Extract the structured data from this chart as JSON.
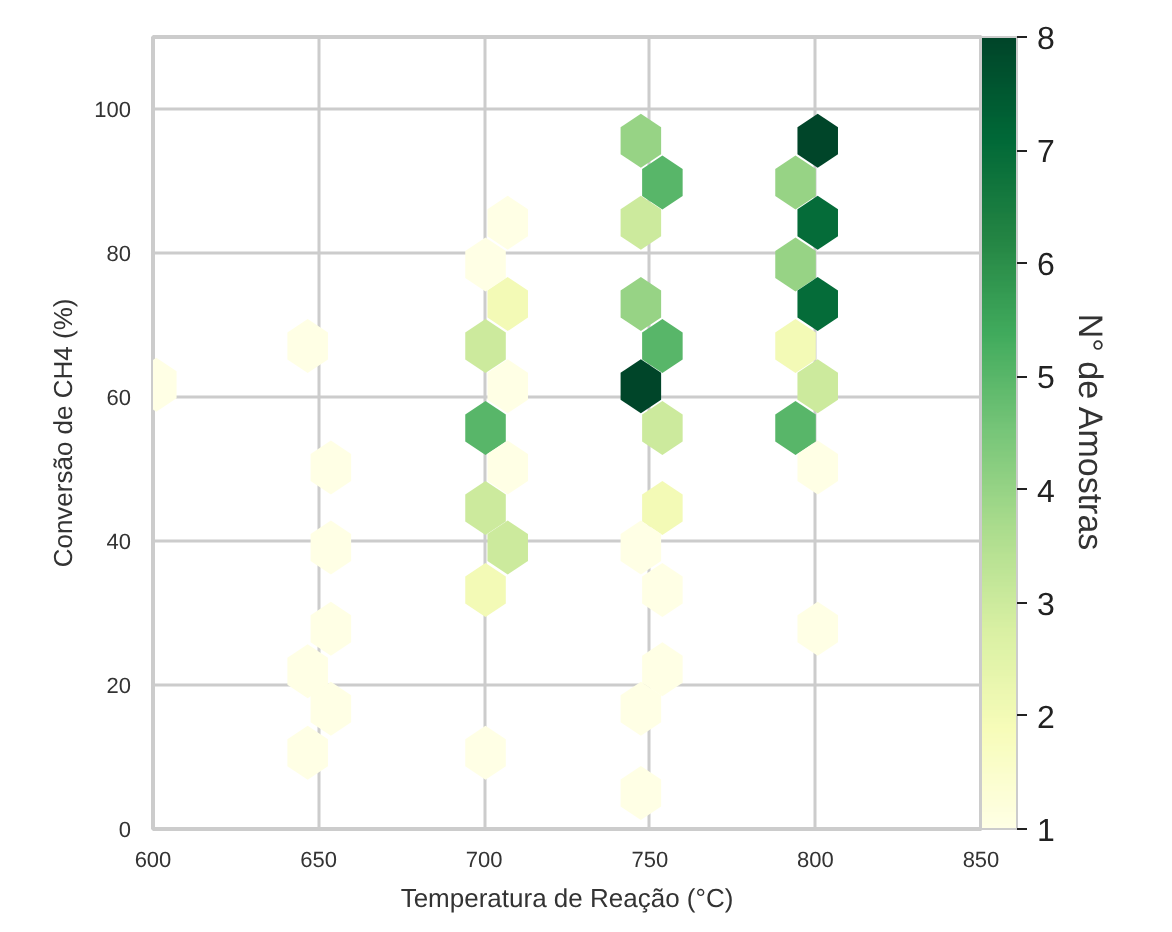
{
  "chart_data": {
    "type": "scatter",
    "xlabel": "Temperatura de Reação (°C)",
    "ylabel": "Conversão de CH4 (%)",
    "clabel": "N° de Amostras",
    "x": [
      601,
      646.7,
      653.7,
      653.7,
      653.7,
      646.7,
      653.7,
      646.7,
      707.1,
      700.4,
      707.1,
      700.4,
      707.1,
      700.4,
      707.1,
      700.4,
      707.1,
      700.4,
      700.4,
      747.3,
      753.8,
      747.3,
      747.3,
      753.8,
      747.3,
      753.8,
      753.8,
      747.3,
      753.8,
      753.8,
      747.3,
      747.3,
      800.7,
      794.0,
      800.7,
      794.0,
      800.7,
      794.0,
      800.7,
      794.0,
      800.7,
      800.7
    ],
    "values": [
      61.7,
      67.1,
      50.2,
      39.1,
      27.8,
      21.9,
      16.7,
      10.6,
      84.2,
      78.4,
      72.9,
      67.1,
      61.5,
      55.7,
      50.2,
      44.6,
      39.1,
      33.2,
      10.6,
      95.6,
      89.8,
      84.2,
      72.9,
      67.1,
      61.5,
      55.7,
      44.6,
      39.1,
      33.2,
      22.2,
      16.7,
      5.0,
      95.6,
      89.8,
      84.2,
      78.4,
      72.9,
      67.1,
      61.5,
      55.7,
      50.2,
      27.8
    ],
    "cvalues": [
      1,
      1,
      1,
      1,
      1,
      1,
      1,
      1,
      1,
      1,
      2,
      3,
      1,
      5,
      1,
      3,
      3,
      2,
      1,
      4,
      5,
      3,
      4,
      5,
      8,
      3,
      2,
      1,
      1,
      1,
      1,
      1,
      8,
      4,
      7,
      4,
      7,
      2,
      3,
      5,
      1,
      1
    ],
    "clim": [
      1,
      8
    ],
    "cticks": [
      1,
      2,
      3,
      4,
      5,
      6,
      7,
      8
    ],
    "xlim": [
      600,
      850
    ],
    "xticks": [
      600,
      650,
      700,
      750,
      800,
      850
    ],
    "ylim": [
      0,
      110
    ],
    "yticks": [
      0,
      20,
      40,
      60,
      80,
      100
    ],
    "grid": true
  }
}
